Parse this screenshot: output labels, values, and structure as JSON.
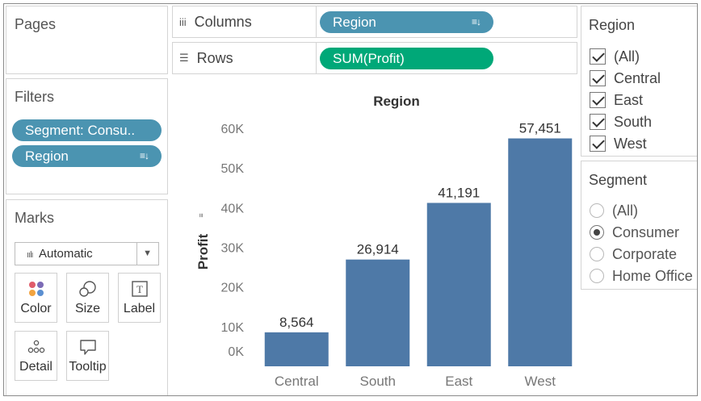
{
  "pages": {
    "title": "Pages"
  },
  "shelves": {
    "columns": {
      "label": "Columns",
      "pill": "Region"
    },
    "rows": {
      "label": "Rows",
      "pill": "SUM(Profit)"
    }
  },
  "filters": {
    "title": "Filters",
    "pills": [
      "Segment: Consu..",
      "Region"
    ]
  },
  "marks": {
    "title": "Marks",
    "type": "Automatic",
    "buttons": [
      "Color",
      "Size",
      "Label",
      "Detail",
      "Tooltip"
    ]
  },
  "region_card": {
    "title": "Region",
    "items": [
      "(All)",
      "Central",
      "East",
      "South",
      "West"
    ]
  },
  "segment_card": {
    "title": "Segment",
    "items": [
      "(All)",
      "Consumer",
      "Corporate",
      "Home Office"
    ],
    "selected": "Consumer"
  },
  "colors": {
    "bar": "#4e79a7",
    "pill_blue": "#4b94b1",
    "pill_green": "#00a878"
  },
  "chart_data": {
    "type": "bar",
    "title": "Region",
    "ylabel": "Profit",
    "xlabel": "",
    "categories": [
      "Central",
      "South",
      "East",
      "West"
    ],
    "values": [
      8564,
      26914,
      41191,
      57451
    ],
    "value_labels": [
      "8,564",
      "26,914",
      "41,191",
      "57,451"
    ],
    "y_ticks": [
      0,
      10000,
      20000,
      30000,
      40000,
      50000,
      60000
    ],
    "y_tick_labels": [
      "0K",
      "10K",
      "20K",
      "30K",
      "40K",
      "50K",
      "60K"
    ],
    "ylim": [
      0,
      60000
    ],
    "grid": false
  }
}
